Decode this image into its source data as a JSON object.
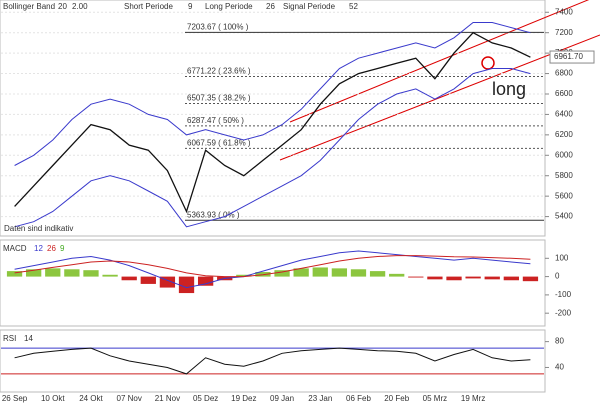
{
  "chart_data": [
    {
      "type": "line",
      "header": [
        "Bollinger Band",
        "20",
        "2.00",
        "Short Periode",
        "9",
        "Long Periode",
        "26",
        "Signal Periode",
        "52"
      ],
      "categories": [
        "26 Sep",
        null,
        "10 Okt",
        null,
        "24 Okt",
        null,
        "07 Nov",
        null,
        "21 Nov",
        null,
        "05 Dez",
        null,
        "19 Dez",
        null,
        "09 Jan",
        null,
        "23 Jan",
        null,
        "06 Feb",
        null,
        "20 Feb",
        null,
        "05 Mrz",
        null,
        "19 Mrz",
        null,
        null,
        null
      ],
      "series": [
        {
          "color": "#3a3acc",
          "values": [
            5900,
            6000,
            6150,
            6350,
            6500,
            6550,
            6500,
            6400,
            6350,
            6200,
            6250,
            6200,
            6150,
            6200,
            6300,
            6450,
            6650,
            6850,
            6950,
            7000,
            7050,
            7100,
            7050,
            7150,
            7300,
            7300,
            7250,
            7200
          ]
        },
        {
          "color": "#3a3acc",
          "values": [
            5300,
            5350,
            5450,
            5600,
            5750,
            5800,
            5750,
            5650,
            5550,
            5300,
            5350,
            5400,
            5500,
            5600,
            5700,
            5800,
            5950,
            6150,
            6350,
            6500,
            6600,
            6650,
            6550,
            6650,
            6800,
            6850,
            6850,
            6800
          ]
        },
        {
          "color": "#111111",
          "values": [
            5500,
            5700,
            5900,
            6100,
            6300,
            6250,
            6100,
            6050,
            5850,
            5450,
            6050,
            5900,
            5800,
            5950,
            6100,
            6250,
            6500,
            6700,
            6800,
            6850,
            6900,
            6950,
            6750,
            7000,
            7200,
            7100,
            7050,
            6960
          ]
        }
      ],
      "fib_levels": [
        {
          "value": 7203.67,
          "label": "7203.67 ( 100% )"
        },
        {
          "value": 6771.22,
          "label": "6771.22 ( 23.6% )"
        },
        {
          "value": 6507.35,
          "label": "6507.35 ( 38.2% )"
        },
        {
          "value": 6287.47,
          "label": "6287.47 ( 50% )"
        },
        {
          "value": 6067.59,
          "label": "6067.59 ( 61.8% )"
        },
        {
          "value": 5363.93,
          "label": "5363.93 ( 0% )"
        }
      ],
      "last_value": {
        "value": 6961.7,
        "label": "6961.70"
      },
      "annotations": [
        "long",
        "Daten sind indikativ"
      ],
      "ylim": [
        5210,
        7520
      ],
      "yticks": [
        7400,
        7200,
        7000,
        6800,
        6600,
        6400,
        6200,
        6000,
        5800,
        5600,
        5400
      ],
      "grid": true
    },
    {
      "type": "macd",
      "title": "MACD",
      "params": [
        12,
        26,
        9
      ],
      "histogram": [
        30,
        40,
        45,
        40,
        35,
        10,
        -20,
        -40,
        -60,
        -90,
        -50,
        -20,
        10,
        25,
        35,
        45,
        50,
        45,
        40,
        30,
        15,
        -5,
        -15,
        -20,
        -10,
        -15,
        -20,
        -25
      ],
      "series": [
        {
          "color": "#3a3acc",
          "values": [
            40,
            60,
            80,
            100,
            110,
            90,
            60,
            20,
            -20,
            -60,
            -40,
            -10,
            0,
            30,
            60,
            90,
            110,
            130,
            140,
            130,
            120,
            110,
            100,
            90,
            100,
            90,
            80,
            70
          ]
        },
        {
          "color": "#cc2222",
          "values": [
            20,
            35,
            50,
            65,
            80,
            85,
            80,
            65,
            45,
            20,
            5,
            0,
            0,
            10,
            25,
            45,
            65,
            85,
            100,
            110,
            115,
            115,
            112,
            108,
            107,
            104,
            100,
            95
          ]
        }
      ],
      "ylim": [
        -270,
        200
      ],
      "yticks": [
        100,
        0,
        -100,
        -200
      ]
    },
    {
      "type": "rsi",
      "title": "RSI",
      "period": 14,
      "values": [
        55,
        62,
        65,
        68,
        70,
        58,
        50,
        45,
        40,
        30,
        55,
        45,
        42,
        50,
        62,
        66,
        68,
        70,
        68,
        66,
        65,
        62,
        50,
        60,
        68,
        55,
        50,
        52
      ],
      "color": "#111111",
      "levels": [
        70,
        30
      ],
      "ylim": [
        2,
        98
      ],
      "yticks": [
        80,
        40
      ]
    }
  ]
}
